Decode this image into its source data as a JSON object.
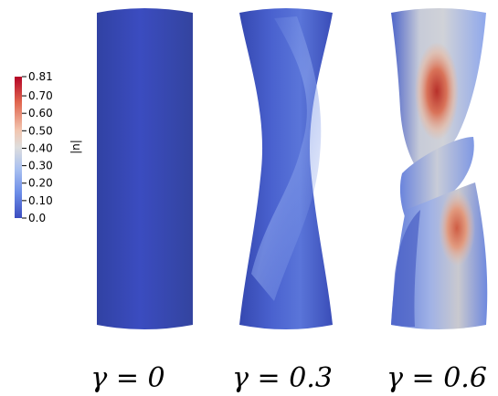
{
  "colorbar": {
    "title": "|u|",
    "ticks": [
      "0.81",
      "0.70",
      "0.60",
      "0.50",
      "0.40",
      "0.30",
      "0.20",
      "0.10",
      "0.0"
    ],
    "tick_values": [
      0.81,
      0.7,
      0.6,
      0.5,
      0.4,
      0.3,
      0.2,
      0.1,
      0.0
    ],
    "range": [
      0.0,
      0.81
    ],
    "colormap": "cool-to-warm",
    "colors": {
      "low": "#3b4cc0",
      "mid": "#dddddd",
      "high": "#b40426"
    }
  },
  "panels": [
    {
      "label": "γ = 0",
      "gamma": 0,
      "max_magnitude": 0.02
    },
    {
      "label": "γ = 0.3",
      "gamma": 0.3,
      "max_magnitude": 0.35
    },
    {
      "label": "γ = 0.6",
      "gamma": 0.6,
      "max_magnitude": 0.81
    }
  ]
}
